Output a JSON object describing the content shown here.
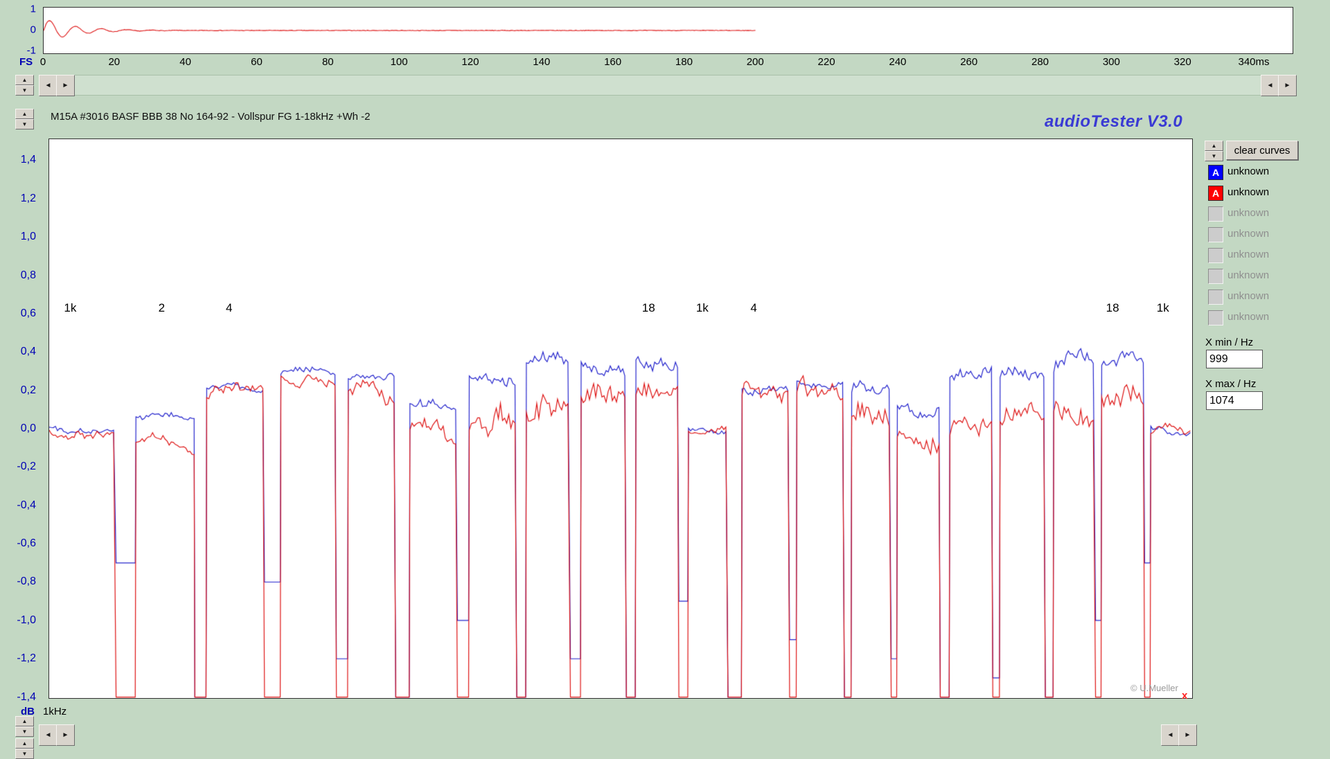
{
  "app": {
    "title": "M15A #3016 BASF BBB 38 No 164-92 - Vollspur FG 1-18kHz +Wh -2",
    "brand": "audioTester  V3.0",
    "watermark": "© U.Mueller",
    "close_mark": "x"
  },
  "icons": {
    "up-arrow": "▲",
    "down-arrow": "▼",
    "left-arrow": "◄",
    "right-arrow": "►"
  },
  "colors": {
    "background": "#c3d8c3",
    "blue_curve": "#2222cc",
    "red_curve": "#dd1111",
    "axis_text": "#0000b4",
    "legend_blue": "#0000ff",
    "legend_red": "#ff0000"
  },
  "sidebar": {
    "clear_curves_label": "clear curves",
    "legend": [
      {
        "marker": "A",
        "color": "#0000ff",
        "label": "unknown",
        "active": true
      },
      {
        "marker": "A",
        "color": "#ff0000",
        "label": "unknown",
        "active": true
      },
      {
        "marker": "",
        "color": "",
        "label": "unknown",
        "active": false
      },
      {
        "marker": "",
        "color": "",
        "label": "unknown",
        "active": false
      },
      {
        "marker": "",
        "color": "",
        "label": "unknown",
        "active": false
      },
      {
        "marker": "",
        "color": "",
        "label": "unknown",
        "active": false
      },
      {
        "marker": "",
        "color": "",
        "label": "unknown",
        "active": false
      },
      {
        "marker": "",
        "color": "",
        "label": "unknown",
        "active": false
      }
    ],
    "x_min_label": "X min / Hz",
    "x_min_value": "999",
    "x_max_label": "X max / Hz",
    "x_max_value": "1074"
  },
  "footer": {
    "db_label": "dB",
    "ref_label": "1kHz"
  },
  "chart_data": [
    {
      "id": "input-signal-time-plot",
      "type": "line",
      "xlabel": "FS",
      "x_unit": "ms",
      "xlim": [
        0,
        350
      ],
      "ylim": [
        -1,
        1
      ],
      "y_ticks": [
        "1",
        "0",
        "-1"
      ],
      "x_tick_ms": [
        0,
        20,
        40,
        60,
        80,
        100,
        120,
        140,
        160,
        180,
        200,
        220,
        240,
        260,
        280,
        300,
        320,
        340
      ],
      "x_tick_labels": [
        "0",
        "20",
        "40",
        "60",
        "80",
        "100",
        "120",
        "140",
        "160",
        "180",
        "200",
        "220",
        "240",
        "260",
        "280",
        "300",
        "320",
        "340ms"
      ],
      "series": [
        {
          "name": "record-signal",
          "color": "#dd1111",
          "shape": "decaying-oscillation-then-flat-zero",
          "osc_amplitude": 0.6,
          "osc_period_ms": 7.2,
          "osc_decay_ms": 8.5,
          "signal_end_ms": 200
        }
      ]
    },
    {
      "id": "frequency-response-bursts",
      "type": "line",
      "title": "M15A #3016 BASF BBB 38 No 164-92 - Vollspur FG 1-18kHz +Wh -2",
      "ylabel": "dB",
      "x_ref_label": "1kHz",
      "ylim": [
        -1.45,
        1.51
      ],
      "y_ticks_values": [
        1.4,
        1.2,
        1.0,
        0.8,
        0.6,
        0.4,
        0.2,
        0.0,
        -0.2,
        -0.4,
        -0.6,
        -0.8,
        -1.0,
        -1.2,
        -1.4
      ],
      "y_tick_labels": [
        "1,4",
        "1,2",
        "1,0",
        "0,8",
        "0,6",
        "0,4",
        "0,2",
        "0,0",
        "-0,2",
        "-0,4",
        "-0,6",
        "-0,8",
        "-1,0",
        "-1,2",
        "-1,4"
      ],
      "gap_floor": -1.4,
      "series_names": [
        "A unknown (blue)",
        "A unknown (red)"
      ],
      "annotations": [
        {
          "text": "1k",
          "f": 0.019,
          "v": 0.63
        },
        {
          "text": "2",
          "f": 0.099,
          "v": 0.63
        },
        {
          "text": "4",
          "f": 0.158,
          "v": 0.63
        },
        {
          "text": "18",
          "f": 0.525,
          "v": 0.63
        },
        {
          "text": "1k",
          "f": 0.572,
          "v": 0.63
        },
        {
          "text": "4",
          "f": 0.617,
          "v": 0.63
        },
        {
          "text": "18",
          "f": 0.931,
          "v": 0.63
        },
        {
          "text": "1k",
          "f": 0.975,
          "v": 0.63
        }
      ],
      "segments": [
        {
          "x0": 0.0,
          "x1": 0.058,
          "blue": 0.01,
          "red": -0.01,
          "nb": 0.02,
          "nr": 0.025,
          "dip": -0.7
        },
        {
          "x0": 0.076,
          "x1": 0.127,
          "blue": 0.07,
          "red": -0.08,
          "nb": 0.02,
          "nr": 0.03,
          "dip": -0.7
        },
        {
          "x0": 0.138,
          "x1": 0.188,
          "blue": 0.22,
          "red": 0.16,
          "nb": 0.02,
          "nr": 0.04,
          "dip": -1.4
        },
        {
          "x0": 0.203,
          "x1": 0.251,
          "blue": 0.28,
          "red": 0.27,
          "nb": 0.025,
          "nr": 0.035,
          "dip": -0.8
        },
        {
          "x0": 0.262,
          "x1": 0.303,
          "blue": 0.25,
          "red": 0.2,
          "nb": 0.03,
          "nr": 0.06,
          "dip": -1.2
        },
        {
          "x0": 0.316,
          "x1": 0.357,
          "blue": 0.13,
          "red": -0.04,
          "nb": 0.04,
          "nr": 0.07,
          "dip": -1.4
        },
        {
          "x0": 0.368,
          "x1": 0.409,
          "blue": 0.3,
          "red": 0.0,
          "nb": 0.04,
          "nr": 0.07,
          "dip": -1.0
        },
        {
          "x0": 0.418,
          "x1": 0.456,
          "blue": 0.33,
          "red": 0.02,
          "nb": 0.04,
          "nr": 0.08,
          "dip": -1.4
        },
        {
          "x0": 0.466,
          "x1": 0.505,
          "blue": 0.33,
          "red": 0.15,
          "nb": 0.04,
          "nr": 0.07,
          "dip": -1.2
        },
        {
          "x0": 0.514,
          "x1": 0.551,
          "blue": 0.37,
          "red": 0.17,
          "nb": 0.04,
          "nr": 0.06,
          "dip": -1.4
        },
        {
          "x0": 0.56,
          "x1": 0.594,
          "blue": 0.0,
          "red": -0.01,
          "nb": 0.015,
          "nr": 0.02,
          "dip": -0.9
        },
        {
          "x0": 0.607,
          "x1": 0.648,
          "blue": 0.22,
          "red": 0.2,
          "nb": 0.03,
          "nr": 0.05,
          "dip": -1.4
        },
        {
          "x0": 0.655,
          "x1": 0.696,
          "blue": 0.24,
          "red": 0.26,
          "nb": 0.03,
          "nr": 0.07,
          "dip": -1.1
        },
        {
          "x0": 0.703,
          "x1": 0.737,
          "blue": 0.2,
          "red": 0.1,
          "nb": 0.04,
          "nr": 0.06,
          "dip": -1.4
        },
        {
          "x0": 0.743,
          "x1": 0.78,
          "blue": 0.13,
          "red": -0.05,
          "nb": 0.05,
          "nr": 0.07,
          "dip": -1.2
        },
        {
          "x0": 0.789,
          "x1": 0.826,
          "blue": 0.25,
          "red": 0.0,
          "nb": 0.04,
          "nr": 0.06,
          "dip": -1.4
        },
        {
          "x0": 0.833,
          "x1": 0.872,
          "blue": 0.27,
          "red": 0.05,
          "nb": 0.04,
          "nr": 0.07,
          "dip": -1.3
        },
        {
          "x0": 0.88,
          "x1": 0.916,
          "blue": 0.33,
          "red": 0.1,
          "nb": 0.05,
          "nr": 0.08,
          "dip": -1.4
        },
        {
          "x0": 0.922,
          "x1": 0.959,
          "blue": 0.32,
          "red": 0.15,
          "nb": 0.05,
          "nr": 0.07,
          "dip": -1.0
        },
        {
          "x0": 0.965,
          "x1": 1.0,
          "blue": 0.0,
          "red": -0.02,
          "nb": 0.02,
          "nr": 0.025,
          "dip": -0.7
        }
      ]
    }
  ]
}
